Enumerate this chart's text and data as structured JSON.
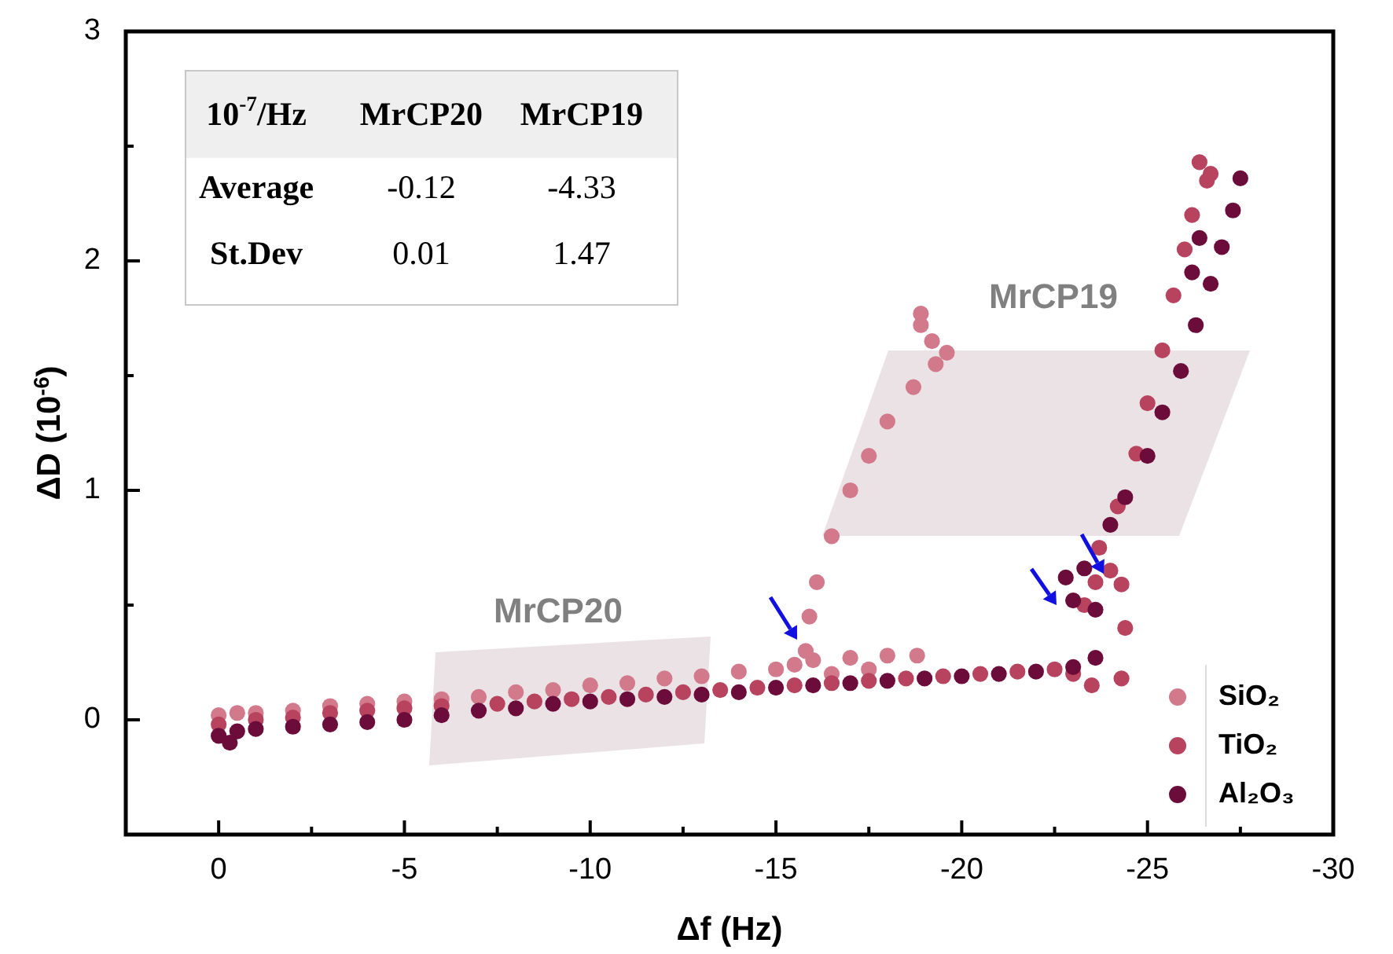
{
  "chart_data": {
    "type": "scatter",
    "xlabel": "Δf (Hz)",
    "ylabel": "ΔD (10$^{-6}$)",
    "xlim": [
      2.5,
      -30
    ],
    "ylim": [
      -0.5,
      3
    ],
    "xticks": [
      0,
      {
        "value": -2.5,
        "label": null
      },
      -5,
      {
        "value": -7.5,
        "label": null
      },
      -10,
      {
        "value": -12.5,
        "label": null
      },
      -15,
      {
        "value": -17.5,
        "label": null
      },
      -20,
      {
        "value": -22.5,
        "label": null
      },
      -25,
      {
        "value": -27.5,
        "label": null
      },
      -30
    ],
    "yticks": [
      {
        "value": -0.5,
        "label": null
      },
      0,
      {
        "value": 0.5,
        "label": null
      },
      1,
      {
        "value": 1.5,
        "label": null
      },
      2,
      {
        "value": 2.5,
        "label": null
      },
      3
    ],
    "marker": "circle",
    "legend": "bottom right",
    "grid": false,
    "annotations": [
      "10$^{-7}$/Hz",
      "MrCP20",
      "MrCP19",
      "Average",
      "-0.12",
      "-4.33",
      "St.Dev",
      "0.01",
      "1.47",
      "MrCP20",
      "MrCP19"
    ],
    "series": [
      {
        "name": "SiO₂",
        "color": "#d27a8c",
        "x": [
          0,
          -0.5,
          -1,
          -2,
          -3,
          -4,
          -5,
          -6,
          -7,
          -8,
          -9,
          -10,
          -11,
          -12,
          -13,
          -14,
          -15,
          -15.5,
          -16,
          -17,
          -18,
          -18.8,
          -17.5,
          -16.5,
          -15.8,
          -15.9,
          -16.1,
          -16.5,
          -17,
          -17.5,
          -18,
          -18.7,
          -19.3,
          -19.6,
          -19.2,
          -18.9,
          -18.9
        ],
        "values": [
          0.02,
          0.03,
          0.03,
          0.04,
          0.06,
          0.07,
          0.08,
          0.09,
          0.1,
          0.12,
          0.13,
          0.15,
          0.16,
          0.18,
          0.19,
          0.21,
          0.22,
          0.24,
          0.26,
          0.27,
          0.28,
          0.28,
          0.22,
          0.2,
          0.3,
          0.45,
          0.6,
          0.8,
          1.0,
          1.15,
          1.3,
          1.45,
          1.55,
          1.6,
          1.65,
          1.72,
          1.77
        ]
      },
      {
        "name": "TiO₂",
        "color": "#b8435f",
        "x": [
          0,
          -1,
          -2,
          -3,
          -4,
          -5,
          -6,
          -7.5,
          -8.5,
          -9.5,
          -10.5,
          -11.5,
          -12.5,
          -13.5,
          -14.5,
          -15.5,
          -16.5,
          -17.5,
          -18.5,
          -19.5,
          -20.5,
          -21.5,
          -22.5,
          -23,
          -23.5,
          -24.3,
          -24.4,
          -24.3,
          -24.0,
          -23.6,
          -23.3,
          -23.7,
          -24.2,
          -24.7,
          -25.0,
          -25.4,
          -25.7,
          -26.0,
          -26.2,
          -26.4,
          -26.6,
          -26.7
        ],
        "values": [
          -0.02,
          0.0,
          0.01,
          0.03,
          0.04,
          0.05,
          0.06,
          0.07,
          0.08,
          0.09,
          0.1,
          0.11,
          0.12,
          0.13,
          0.14,
          0.15,
          0.16,
          0.17,
          0.18,
          0.19,
          0.2,
          0.21,
          0.22,
          0.2,
          0.15,
          0.18,
          0.4,
          0.59,
          0.65,
          0.6,
          0.5,
          0.75,
          0.93,
          1.16,
          1.38,
          1.61,
          1.85,
          2.05,
          2.2,
          2.43,
          2.35,
          2.38
        ]
      },
      {
        "name": "Al₂O₃",
        "color": "#6b0c3b",
        "x": [
          0,
          -0.3,
          -0.5,
          -1,
          -2,
          -3,
          -4,
          -5,
          -6,
          -7,
          -8,
          -9,
          -10,
          -11,
          -12,
          -13,
          -14,
          -15,
          -16,
          -17,
          -18,
          -19,
          -20,
          -21,
          -22,
          -23,
          -23.6,
          -23.6,
          -23.0,
          -22.8,
          -23.3,
          -24.0,
          -24.4,
          -25.0,
          -25.4,
          -25.9,
          -26.3,
          -26.7,
          -27.0,
          -27.3,
          -27.5,
          -26.4,
          -26.2
        ],
        "values": [
          -0.07,
          -0.1,
          -0.05,
          -0.04,
          -0.03,
          -0.02,
          -0.01,
          0.0,
          0.02,
          0.04,
          0.05,
          0.07,
          0.08,
          0.09,
          0.1,
          0.11,
          0.12,
          0.14,
          0.15,
          0.16,
          0.17,
          0.18,
          0.19,
          0.2,
          0.21,
          0.23,
          0.27,
          0.48,
          0.52,
          0.62,
          0.66,
          0.85,
          0.97,
          1.15,
          1.34,
          1.52,
          1.72,
          1.9,
          2.06,
          2.22,
          2.36,
          2.1,
          1.95
        ]
      }
    ]
  }
}
